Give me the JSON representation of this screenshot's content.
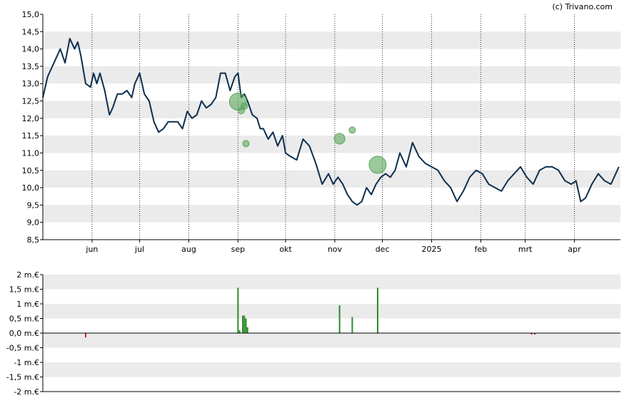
{
  "credit": "(c) Trivano.com",
  "colors": {
    "price_line": "#0d2f4f",
    "band": "#ebebeb",
    "bubble": "#5aa55a",
    "bar_positive": "#2a8a2a",
    "bar_negative": "#d42020"
  },
  "chart_data": [
    {
      "type": "line",
      "ylim": [
        8.5,
        15.0
      ],
      "y_ticks": [
        "8,5",
        "9,0",
        "9,5",
        "10,0",
        "10,5",
        "11,0",
        "11,5",
        "12,0",
        "12,5",
        "13,0",
        "13,5",
        "14,0",
        "14,5",
        "15,0"
      ],
      "x_ticks": [
        "jun",
        "jul",
        "aug",
        "sep",
        "okt",
        "nov",
        "dec",
        "2025",
        "feb",
        "mrt",
        "apr"
      ],
      "grid": "alternating horizontal bands, dotted vertical month lines",
      "series": [
        {
          "x": [
            "2024-05-01",
            "2024-05-04",
            "2024-05-08",
            "2024-05-12",
            "2024-05-15",
            "2024-05-18",
            "2024-05-21",
            "2024-05-23",
            "2024-05-25",
            "2024-05-28",
            "2024-05-31",
            "2024-06-02",
            "2024-06-04",
            "2024-06-06",
            "2024-06-09",
            "2024-06-12",
            "2024-06-14",
            "2024-06-17",
            "2024-06-20",
            "2024-06-23",
            "2024-06-26",
            "2024-06-28",
            "2024-07-01",
            "2024-07-04",
            "2024-07-07",
            "2024-07-10",
            "2024-07-13",
            "2024-07-16",
            "2024-07-19",
            "2024-07-22",
            "2024-07-25",
            "2024-07-28",
            "2024-07-31",
            "2024-08-03",
            "2024-08-06",
            "2024-08-09",
            "2024-08-12",
            "2024-08-15",
            "2024-08-18",
            "2024-08-21",
            "2024-08-24",
            "2024-08-27",
            "2024-08-30",
            "2024-09-01",
            "2024-09-03",
            "2024-09-05",
            "2024-09-07",
            "2024-09-10",
            "2024-09-13",
            "2024-09-15",
            "2024-09-17",
            "2024-09-20",
            "2024-09-23",
            "2024-09-26",
            "2024-09-29",
            "2024-10-01",
            "2024-10-04",
            "2024-10-08",
            "2024-10-12",
            "2024-10-16",
            "2024-10-20",
            "2024-10-24",
            "2024-10-28",
            "2024-10-31",
            "2024-11-03",
            "2024-11-06",
            "2024-11-09",
            "2024-11-12",
            "2024-11-15",
            "2024-11-18",
            "2024-11-21",
            "2024-11-24",
            "2024-11-27",
            "2024-11-30",
            "2024-12-03",
            "2024-12-06",
            "2024-12-09",
            "2024-12-12",
            "2024-12-16",
            "2024-12-20",
            "2024-12-24",
            "2024-12-28",
            "2025-01-01",
            "2025-01-05",
            "2025-01-09",
            "2025-01-13",
            "2025-01-17",
            "2025-01-21",
            "2025-01-25",
            "2025-01-29",
            "2025-02-02",
            "2025-02-06",
            "2025-02-10",
            "2025-02-14",
            "2025-02-18",
            "2025-02-22",
            "2025-02-26",
            "2025-03-02",
            "2025-03-06",
            "2025-03-10",
            "2025-03-14",
            "2025-03-18",
            "2025-03-22",
            "2025-03-26",
            "2025-03-30",
            "2025-04-02",
            "2025-04-05",
            "2025-04-08",
            "2025-04-12",
            "2025-04-16",
            "2025-04-20",
            "2025-04-24",
            "2025-04-29"
          ],
          "y": [
            12.6,
            13.2,
            13.6,
            14.0,
            13.6,
            14.3,
            14.0,
            14.2,
            13.8,
            13.0,
            12.9,
            13.3,
            13.0,
            13.3,
            12.8,
            12.1,
            12.3,
            12.7,
            12.7,
            12.8,
            12.6,
            13.0,
            13.3,
            12.7,
            12.5,
            11.9,
            11.6,
            11.7,
            11.9,
            11.9,
            11.9,
            11.7,
            12.2,
            12.0,
            12.1,
            12.5,
            12.3,
            12.4,
            12.6,
            13.3,
            13.3,
            12.8,
            13.2,
            13.3,
            12.6,
            12.7,
            12.5,
            12.1,
            12.0,
            11.7,
            11.7,
            11.4,
            11.6,
            11.2,
            11.5,
            11.0,
            10.9,
            10.8,
            11.4,
            11.2,
            10.7,
            10.1,
            10.4,
            10.1,
            10.3,
            10.1,
            9.8,
            9.6,
            9.5,
            9.6,
            10.0,
            9.8,
            10.1,
            10.3,
            10.4,
            10.3,
            10.5,
            11.0,
            10.6,
            11.3,
            10.9,
            10.7,
            10.6,
            10.5,
            10.2,
            10.0,
            9.6,
            9.9,
            10.3,
            10.5,
            10.4,
            10.1,
            10.0,
            9.9,
            10.2,
            10.4,
            10.6,
            10.3,
            10.1,
            10.5,
            10.6,
            10.6,
            10.5,
            10.2,
            10.1,
            10.2,
            9.6,
            9.7,
            10.1,
            10.4,
            10.2,
            10.1,
            10.6
          ]
        }
      ],
      "bubbles": [
        {
          "x": "2024-09-01",
          "y": 12.48,
          "size": 3
        },
        {
          "x": "2024-09-03",
          "y": 12.22,
          "size": 1
        },
        {
          "x": "2024-09-05",
          "y": 12.35,
          "size": 1
        },
        {
          "x": "2024-09-06",
          "y": 11.27,
          "size": 1
        },
        {
          "x": "2024-11-04",
          "y": 11.41,
          "size": 2
        },
        {
          "x": "2024-11-12",
          "y": 11.66,
          "size": 1
        },
        {
          "x": "2024-11-28",
          "y": 10.66,
          "size": 3
        }
      ]
    },
    {
      "type": "bar",
      "ylim": [
        -2,
        2
      ],
      "unit": "m.€",
      "y_ticks": [
        "2 m.€",
        "1,5 m.€",
        "1 m.€",
        "0,5 m.€",
        "0,0 m.€",
        "-0,5 m.€",
        "-1 m.€",
        "-1,5 m.€",
        "-2 m.€"
      ],
      "bars": [
        {
          "x": "2024-05-28",
          "value": -0.15
        },
        {
          "x": "2024-09-01",
          "value": 1.55
        },
        {
          "x": "2024-09-02",
          "value": 0.1
        },
        {
          "x": "2024-09-04",
          "value": 0.6
        },
        {
          "x": "2024-09-05",
          "value": 0.6
        },
        {
          "x": "2024-09-06",
          "value": 0.5
        },
        {
          "x": "2024-09-07",
          "value": 0.2
        },
        {
          "x": "2024-11-04",
          "value": 0.95
        },
        {
          "x": "2024-11-12",
          "value": 0.55
        },
        {
          "x": "2024-11-28",
          "value": 1.55
        },
        {
          "x": "2025-03-05",
          "value": -0.05
        },
        {
          "x": "2025-03-07",
          "value": -0.05
        }
      ]
    }
  ]
}
